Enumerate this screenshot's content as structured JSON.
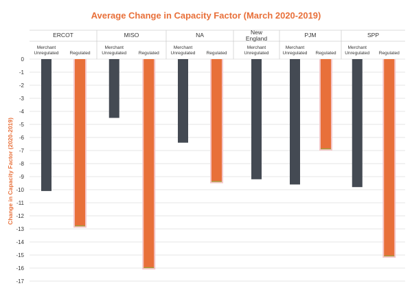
{
  "chart_data": {
    "type": "bar",
    "title": "Average Change in Capacity Factor (March 2020-2019)",
    "ylabel": "Change in Capacity Factor (2020-2019)",
    "xlabel": "",
    "ylim": [
      -17,
      0
    ],
    "yticks": [
      0,
      -1,
      -2,
      -3,
      -4,
      -5,
      -6,
      -7,
      -8,
      -9,
      -10,
      -11,
      -12,
      -13,
      -14,
      -15,
      -16,
      -17
    ],
    "grid": true,
    "groups": [
      {
        "name": "ERCOT",
        "bars": [
          {
            "label": "Merchant Unregulated",
            "label_lines": [
              "Merchant",
              "Unregulated"
            ],
            "type": "merchant",
            "value": -10.1
          },
          {
            "label": "Regulated",
            "label_lines": [
              "Regulated"
            ],
            "type": "regulated",
            "value": -12.8
          }
        ]
      },
      {
        "name": "MISO",
        "bars": [
          {
            "label": "Merchant Unregulated",
            "label_lines": [
              "Merchant",
              "Unregulated"
            ],
            "type": "merchant",
            "value": -4.5
          },
          {
            "label": "Regulated",
            "label_lines": [
              "Regulated"
            ],
            "type": "regulated",
            "value": -16.0
          }
        ]
      },
      {
        "name": "NA",
        "bars": [
          {
            "label": "Merchant Unregulated",
            "label_lines": [
              "Merchant",
              "Unregulated"
            ],
            "type": "merchant",
            "value": -6.4
          },
          {
            "label": "Regulated",
            "label_lines": [
              "Regulated"
            ],
            "type": "regulated",
            "value": -9.4
          }
        ]
      },
      {
        "name": "New England",
        "name_lines": [
          "New",
          "England"
        ],
        "bars": [
          {
            "label": "Merchant Unregulated",
            "label_lines": [
              "Merchant",
              "Unregulated"
            ],
            "type": "merchant",
            "value": -9.2
          }
        ]
      },
      {
        "name": "PJM",
        "bars": [
          {
            "label": "Merchant Unregulated",
            "label_lines": [
              "Merchant",
              "Unregulated"
            ],
            "type": "merchant",
            "value": -9.6
          },
          {
            "label": "Regulated",
            "label_lines": [
              "Regulated"
            ],
            "type": "regulated",
            "value": -6.9
          }
        ]
      },
      {
        "name": "SPP",
        "bars": [
          {
            "label": "Merchant Unregulated",
            "label_lines": [
              "Merchant",
              "Unregulated"
            ],
            "type": "merchant",
            "value": -9.8
          },
          {
            "label": "Regulated",
            "label_lines": [
              "Regulated"
            ],
            "type": "regulated",
            "value": -15.1
          }
        ]
      }
    ],
    "colors": {
      "merchant": "#444a53",
      "regulated": "#e8703a",
      "regulated_border": "#f4c7c9",
      "regulated_base": "#9aa33c"
    }
  }
}
